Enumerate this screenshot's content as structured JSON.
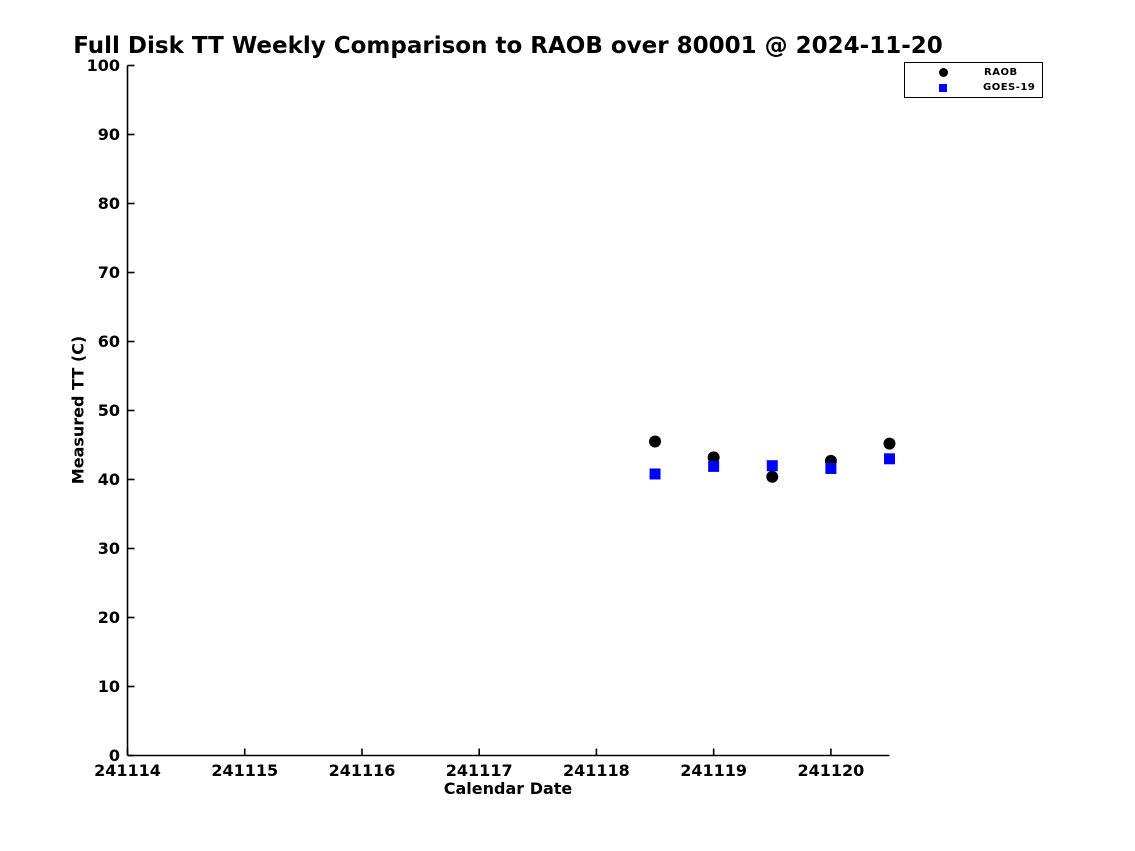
{
  "title": "Full Disk TT Weekly Comparison to RAOB over 80001 @ 2024-11-20",
  "colors": {
    "raob": "#000000",
    "goes19": "#0000ff",
    "axis": "#000000",
    "background": "#ffffff"
  },
  "legend": {
    "position": "top-right",
    "items": [
      {
        "label": "RAOB",
        "marker": "circle",
        "color": "#000000"
      },
      {
        "label": "GOES-19",
        "marker": "square",
        "color": "#0000ff"
      }
    ]
  },
  "chart_data": {
    "type": "scatter",
    "title": "Full Disk TT Weekly Comparison to RAOB over 80001 @ 2024-11-20",
    "xlabel": "Calendar Date",
    "ylabel": "Measured TT (C)",
    "xlim": [
      241114,
      241120.5
    ],
    "ylim": [
      0,
      100
    ],
    "x_ticks": [
      241114,
      241115,
      241116,
      241117,
      241118,
      241119,
      241120
    ],
    "y_ticks": [
      0,
      10,
      20,
      30,
      40,
      50,
      60,
      70,
      80,
      90,
      100
    ],
    "grid": false,
    "legend_position": "top-right",
    "series": [
      {
        "name": "RAOB",
        "marker": "circle",
        "color": "#000000",
        "points": [
          [
            241118.5,
            45.5
          ],
          [
            241119.0,
            43.2
          ],
          [
            241119.5,
            40.4
          ],
          [
            241120.0,
            42.7
          ],
          [
            241120.5,
            45.2
          ]
        ]
      },
      {
        "name": "GOES-19",
        "marker": "square",
        "color": "#0000ff",
        "points": [
          [
            241118.5,
            40.8
          ],
          [
            241119.0,
            41.9
          ],
          [
            241119.5,
            42.0
          ],
          [
            241120.0,
            41.6
          ],
          [
            241120.5,
            43.0
          ]
        ]
      }
    ]
  }
}
